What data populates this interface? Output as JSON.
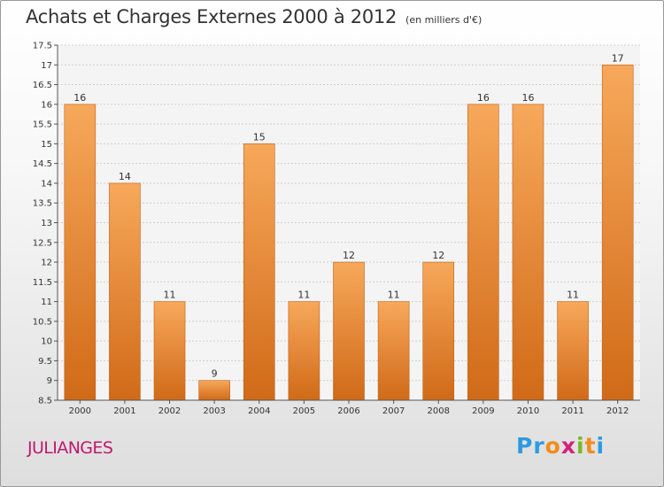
{
  "header": {
    "title": "Achats et Charges Externes 2000 à 2012",
    "unit": "(en milliers d'€)"
  },
  "footer": {
    "commune": "JULIANGES",
    "logo": {
      "letters": [
        "P",
        "r",
        "o",
        "x",
        "i",
        "t",
        "i"
      ],
      "colors": [
        "#2e9be0",
        "#2e9be0",
        "#f28c1a",
        "#d6207c",
        "#7ab828",
        "#f28c1a",
        "#2e9be0"
      ]
    }
  },
  "colors": {
    "bar_light": "#f7a85a",
    "bar_dark": "#d06a18",
    "commune": "#c0186d"
  },
  "chart_data": {
    "type": "bar",
    "title": "Achats et Charges Externes 2000 à 2012",
    "subtitle": "(en milliers d'€)",
    "categories": [
      "2000",
      "2001",
      "2002",
      "2003",
      "2004",
      "2005",
      "2006",
      "2007",
      "2008",
      "2009",
      "2010",
      "2011",
      "2012"
    ],
    "values": [
      16,
      14,
      11,
      9,
      15,
      11,
      12,
      11,
      12,
      16,
      16,
      11,
      17
    ],
    "data_labels": [
      "16",
      "14",
      "11",
      "9",
      "15",
      "11",
      "12",
      "11",
      "12",
      "16",
      "16",
      "11",
      "17"
    ],
    "ylim": [
      8.5,
      17.5
    ],
    "yticks": [
      "8.5",
      "9",
      "9.5",
      "10",
      "10.5",
      "11",
      "11.5",
      "12",
      "12.5",
      "13",
      "13.5",
      "14",
      "14.5",
      "15",
      "15.5",
      "16",
      "16.5",
      "17",
      "17.5"
    ],
    "grid": true,
    "legend": "none"
  }
}
